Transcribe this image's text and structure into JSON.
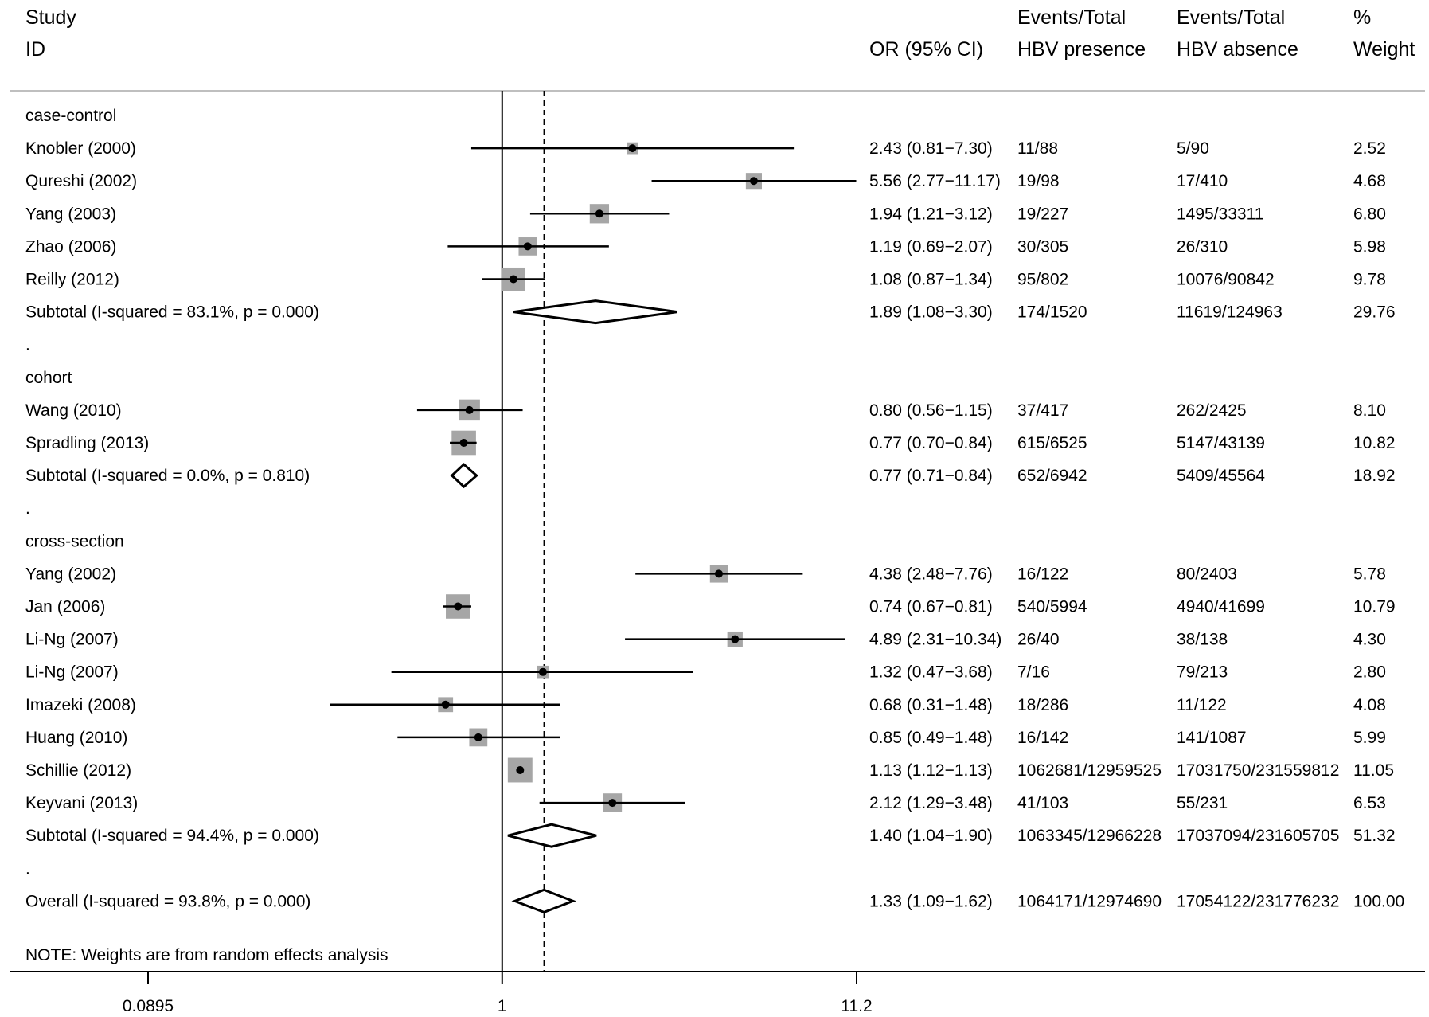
{
  "header": {
    "study": "Study",
    "id": "ID",
    "or": "OR (95% CI)",
    "events_presence_1": "Events/Total",
    "events_presence_2": "HBV presence",
    "events_absence_1": "Events/Total",
    "events_absence_2": "HBV absence",
    "weight_1": "%",
    "weight_2": "Weight"
  },
  "note": "NOTE: Weights are from random effects analysis",
  "chart_data": {
    "type": "forest",
    "scale": "log",
    "xlim": [
      0.0895,
      11.2
    ],
    "ticks": [
      {
        "value": 0.0895,
        "label": "0.0895"
      },
      {
        "value": 1,
        "label": "1"
      },
      {
        "value": 11.2,
        "label": "11.2"
      }
    ],
    "null_line": 1,
    "overall_line": 1.33,
    "rows": [
      {
        "kind": "group",
        "label": "case-control"
      },
      {
        "kind": "study",
        "label": "Knobler (2000)",
        "or": 2.43,
        "lo": 0.81,
        "hi": 7.3,
        "ci": "2.43 (0.81−7.30)",
        "events_presence": "11/88",
        "events_absence": "5/90",
        "weight": 2.52,
        "weight_label": "2.52"
      },
      {
        "kind": "study",
        "label": "Qureshi (2002)",
        "or": 5.56,
        "lo": 2.77,
        "hi": 11.17,
        "ci": "5.56 (2.77−11.17)",
        "events_presence": "19/98",
        "events_absence": "17/410",
        "weight": 4.68,
        "weight_label": "4.68"
      },
      {
        "kind": "study",
        "label": "Yang (2003)",
        "or": 1.94,
        "lo": 1.21,
        "hi": 3.12,
        "ci": "1.94 (1.21−3.12)",
        "events_presence": "19/227",
        "events_absence": "1495/33311",
        "weight": 6.8,
        "weight_label": "6.80"
      },
      {
        "kind": "study",
        "label": "Zhao (2006)",
        "or": 1.19,
        "lo": 0.69,
        "hi": 2.07,
        "ci": "1.19 (0.69−2.07)",
        "events_presence": "30/305",
        "events_absence": "26/310",
        "weight": 5.98,
        "weight_label": "5.98"
      },
      {
        "kind": "study",
        "label": "Reilly (2012)",
        "or": 1.08,
        "lo": 0.87,
        "hi": 1.34,
        "ci": "1.08 (0.87−1.34)",
        "events_presence": "95/802",
        "events_absence": "10076/90842",
        "weight": 9.78,
        "weight_label": "9.78"
      },
      {
        "kind": "subtotal",
        "label": "Subtotal  (I-squared = 83.1%, p = 0.000)",
        "or": 1.89,
        "lo": 1.08,
        "hi": 3.3,
        "ci": "1.89 (1.08−3.30)",
        "events_presence": "174/1520",
        "events_absence": "11619/124963",
        "weight_label": "29.76"
      },
      {
        "kind": "spacer",
        "label": "."
      },
      {
        "kind": "group",
        "label": "cohort"
      },
      {
        "kind": "study",
        "label": "Wang (2010)",
        "or": 0.8,
        "lo": 0.56,
        "hi": 1.15,
        "ci": "0.80 (0.56−1.15)",
        "events_presence": "37/417",
        "events_absence": "262/2425",
        "weight": 8.1,
        "weight_label": "8.10"
      },
      {
        "kind": "study",
        "label": "Spradling (2013)",
        "or": 0.77,
        "lo": 0.7,
        "hi": 0.84,
        "ci": "0.77 (0.70−0.84)",
        "events_presence": "615/6525",
        "events_absence": "5147/43139",
        "weight": 10.82,
        "weight_label": "10.82"
      },
      {
        "kind": "subtotal",
        "label": "Subtotal  (I-squared = 0.0%, p = 0.810)",
        "or": 0.77,
        "lo": 0.71,
        "hi": 0.84,
        "ci": "0.77 (0.71−0.84)",
        "events_presence": "652/6942",
        "events_absence": "5409/45564",
        "weight_label": "18.92"
      },
      {
        "kind": "spacer",
        "label": "."
      },
      {
        "kind": "group",
        "label": "cross-section"
      },
      {
        "kind": "study",
        "label": "Yang (2002)",
        "or": 4.38,
        "lo": 2.48,
        "hi": 7.76,
        "ci": "4.38 (2.48−7.76)",
        "events_presence": "16/122",
        "events_absence": "80/2403",
        "weight": 5.78,
        "weight_label": "5.78"
      },
      {
        "kind": "study",
        "label": "Jan (2006)",
        "or": 0.74,
        "lo": 0.67,
        "hi": 0.81,
        "ci": "0.74 (0.67−0.81)",
        "events_presence": "540/5994",
        "events_absence": "4940/41699",
        "weight": 10.79,
        "weight_label": "10.79"
      },
      {
        "kind": "study",
        "label": "Li-Ng (2007)",
        "or": 4.89,
        "lo": 2.31,
        "hi": 10.34,
        "ci": "4.89 (2.31−10.34)",
        "events_presence": "26/40",
        "events_absence": "38/138",
        "weight": 4.3,
        "weight_label": "4.30"
      },
      {
        "kind": "study",
        "label": "Li-Ng (2007)",
        "or": 1.32,
        "lo": 0.47,
        "hi": 3.68,
        "ci": "1.32 (0.47−3.68)",
        "events_presence": "7/16",
        "events_absence": "79/213",
        "weight": 2.8,
        "weight_label": "2.80"
      },
      {
        "kind": "study",
        "label": "Imazeki (2008)",
        "or": 0.68,
        "lo": 0.31,
        "hi": 1.48,
        "ci": "0.68 (0.31−1.48)",
        "events_presence": "18/286",
        "events_absence": "11/122",
        "weight": 4.08,
        "weight_label": "4.08"
      },
      {
        "kind": "study",
        "label": "Huang (2010)",
        "or": 0.85,
        "lo": 0.49,
        "hi": 1.48,
        "ci": "0.85 (0.49−1.48)",
        "events_presence": "16/142",
        "events_absence": "141/1087",
        "weight": 5.99,
        "weight_label": "5.99"
      },
      {
        "kind": "study",
        "label": "Schillie (2012)",
        "or": 1.13,
        "lo": 1.12,
        "hi": 1.13,
        "ci": "1.13 (1.12−1.13)",
        "events_presence": "1062681/12959525",
        "events_absence": "17031750/231559812",
        "weight": 11.05,
        "weight_label": "11.05"
      },
      {
        "kind": "study",
        "label": "Keyvani (2013)",
        "or": 2.12,
        "lo": 1.29,
        "hi": 3.48,
        "ci": "2.12 (1.29−3.48)",
        "events_presence": "41/103",
        "events_absence": "55/231",
        "weight": 6.53,
        "weight_label": "6.53"
      },
      {
        "kind": "subtotal",
        "label": "Subtotal  (I-squared = 94.4%, p = 0.000)",
        "or": 1.4,
        "lo": 1.04,
        "hi": 1.9,
        "ci": "1.40 (1.04−1.90)",
        "events_presence": "1063345/12966228",
        "events_absence": "17037094/231605705",
        "weight_label": "51.32"
      },
      {
        "kind": "spacer",
        "label": "."
      },
      {
        "kind": "overall",
        "label": "Overall  (I-squared = 93.8%, p = 0.000)",
        "or": 1.33,
        "lo": 1.09,
        "hi": 1.62,
        "ci": "1.33 (1.09−1.62)",
        "events_presence": "1064171/12974690",
        "events_absence": "17054122/231776232",
        "weight_label": "100.00"
      }
    ],
    "colors": {
      "box": "#a6a6a6",
      "line": "#000000",
      "rule": "#bfbfbf"
    }
  }
}
